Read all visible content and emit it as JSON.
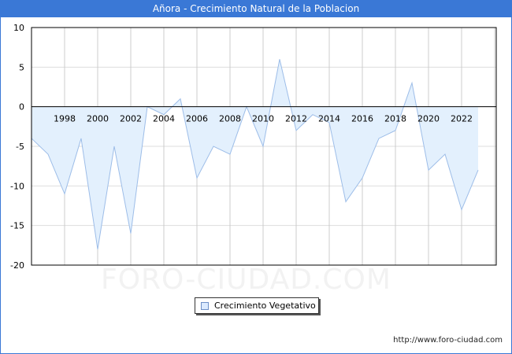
{
  "title": "Añora - Crecimiento Natural de la Poblacion",
  "watermark": "FORO-CIUDAD.COM",
  "footer_url": "http://www.foro-ciudad.com",
  "legend": {
    "label": "Crecimiento Vegetativo"
  },
  "colors": {
    "header": "#3a78d6",
    "fill": "#e3f0fd",
    "line": "#9dbde8"
  },
  "chart_data": {
    "type": "area",
    "title": "Añora - Crecimiento Natural de la Poblacion",
    "xlabel": "",
    "ylabel": "",
    "ylim": [
      -20,
      10
    ],
    "yticks": [
      10,
      5,
      0,
      -5,
      -10,
      -15,
      -20
    ],
    "xticks": [
      1998,
      2000,
      2002,
      2004,
      2006,
      2008,
      2010,
      2012,
      2014,
      2016,
      2018,
      2020,
      2022
    ],
    "grid": true,
    "legend_position": "bottom",
    "series": [
      {
        "name": "Crecimiento Vegetativo",
        "x": [
          1996,
          1997,
          1998,
          1999,
          2000,
          2001,
          2002,
          2003,
          2004,
          2005,
          2006,
          2007,
          2008,
          2009,
          2010,
          2011,
          2012,
          2013,
          2014,
          2015,
          2016,
          2017,
          2018,
          2019,
          2020,
          2021,
          2022,
          2023
        ],
        "values": [
          -4,
          -6,
          -11,
          -4,
          -18,
          -5,
          -16,
          0,
          -1,
          1,
          -9,
          -5,
          -6,
          0,
          -5,
          6,
          -3,
          -1,
          -2,
          -12,
          -9,
          -4,
          -3,
          3,
          -8,
          -6,
          -13,
          -8
        ]
      }
    ]
  }
}
